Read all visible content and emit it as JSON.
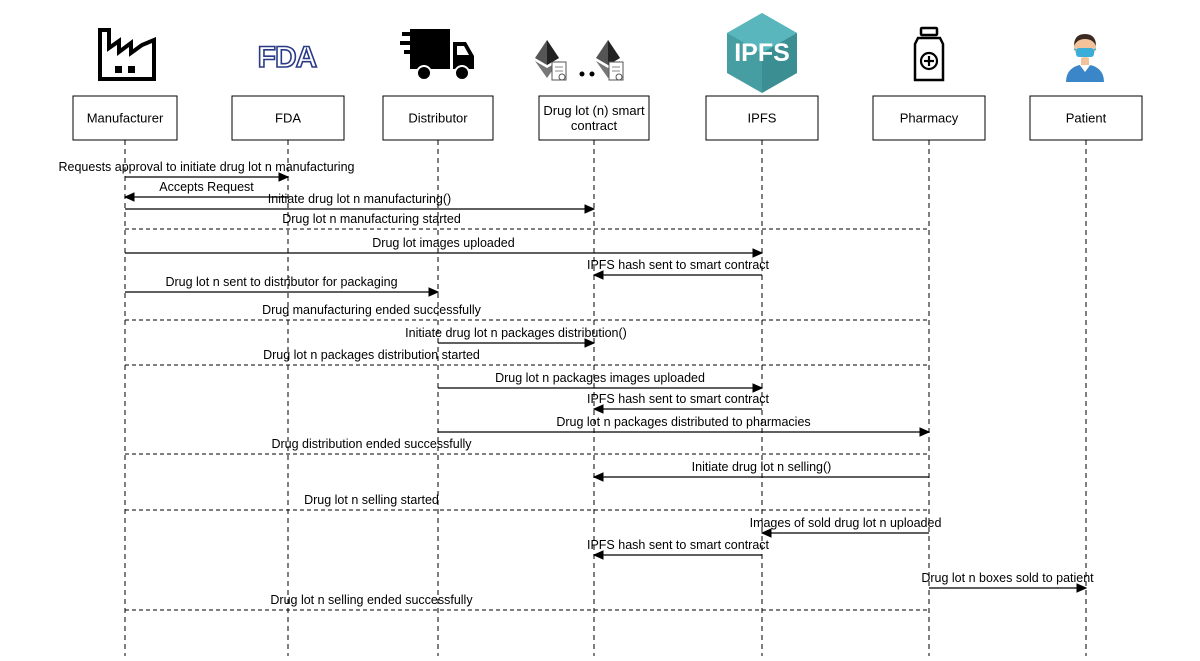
{
  "logos": {
    "fda": "FDA",
    "ipfs": "IPFS"
  },
  "icons": {
    "manufacturer": "factory-icon",
    "fda": "fda-logo-icon",
    "distributor": "delivery-truck-icon",
    "smart_contract": "ethereum-contract-icon",
    "ipfs": "ipfs-cube-icon",
    "pharmacy": "medicine-bottle-icon",
    "patient": "patient-mask-icon"
  },
  "actors": [
    {
      "id": "manufacturer",
      "label": [
        "Manufacturer"
      ]
    },
    {
      "id": "fda",
      "label": [
        "FDA"
      ]
    },
    {
      "id": "distributor",
      "label": [
        "Distributor"
      ]
    },
    {
      "id": "contract",
      "label": [
        "Drug lot (n) smart",
        "contract"
      ]
    },
    {
      "id": "ipfs",
      "label": [
        "IPFS"
      ]
    },
    {
      "id": "pharmacy",
      "label": [
        "Pharmacy"
      ]
    },
    {
      "id": "patient",
      "label": [
        "Patient"
      ]
    }
  ],
  "messages": [
    {
      "text": "Requests approval to initiate drug lot n manufacturing",
      "from": "manufacturer",
      "to": "fda"
    },
    {
      "text": "Accepts Request",
      "from": "fda",
      "to": "manufacturer"
    },
    {
      "text": "Initiate drug lot n manufacturing()",
      "from": "manufacturer",
      "to": "contract"
    },
    {
      "text": "Drug lot n manufacturing started",
      "type": "broadcast"
    },
    {
      "text": "Drug lot images uploaded",
      "from": "manufacturer",
      "to": "ipfs"
    },
    {
      "text": "IPFS hash sent to smart contract",
      "from": "ipfs",
      "to": "contract"
    },
    {
      "text": "Drug lot n sent to distributor for packaging",
      "from": "manufacturer",
      "to": "distributor"
    },
    {
      "text": "Drug manufacturing ended successfully",
      "type": "broadcast"
    },
    {
      "text": "Initiate drug lot n packages distribution()",
      "from": "distributor",
      "to": "contract"
    },
    {
      "text": "Drug lot n packages distribution started",
      "type": "broadcast"
    },
    {
      "text": "Drug lot n packages images uploaded",
      "from": "distributor",
      "to": "ipfs"
    },
    {
      "text": "IPFS hash sent to smart contract",
      "from": "ipfs",
      "to": "contract"
    },
    {
      "text": "Drug lot n packages distributed to pharmacies",
      "from": "distributor",
      "to": "pharmacy"
    },
    {
      "text": "Drug distribution ended successfully",
      "type": "broadcast"
    },
    {
      "text": "Initiate drug lot n selling()",
      "from": "pharmacy",
      "to": "contract"
    },
    {
      "text": "Drug lot n selling started",
      "type": "broadcast"
    },
    {
      "text": "Images of sold drug lot n uploaded",
      "from": "pharmacy",
      "to": "ipfs"
    },
    {
      "text": "IPFS hash sent to smart contract",
      "from": "ipfs",
      "to": "contract"
    },
    {
      "text": "Drug lot n boxes sold to patient",
      "from": "pharmacy",
      "to": "patient"
    },
    {
      "text": "Drug lot n selling ended successfully",
      "type": "broadcast"
    }
  ]
}
